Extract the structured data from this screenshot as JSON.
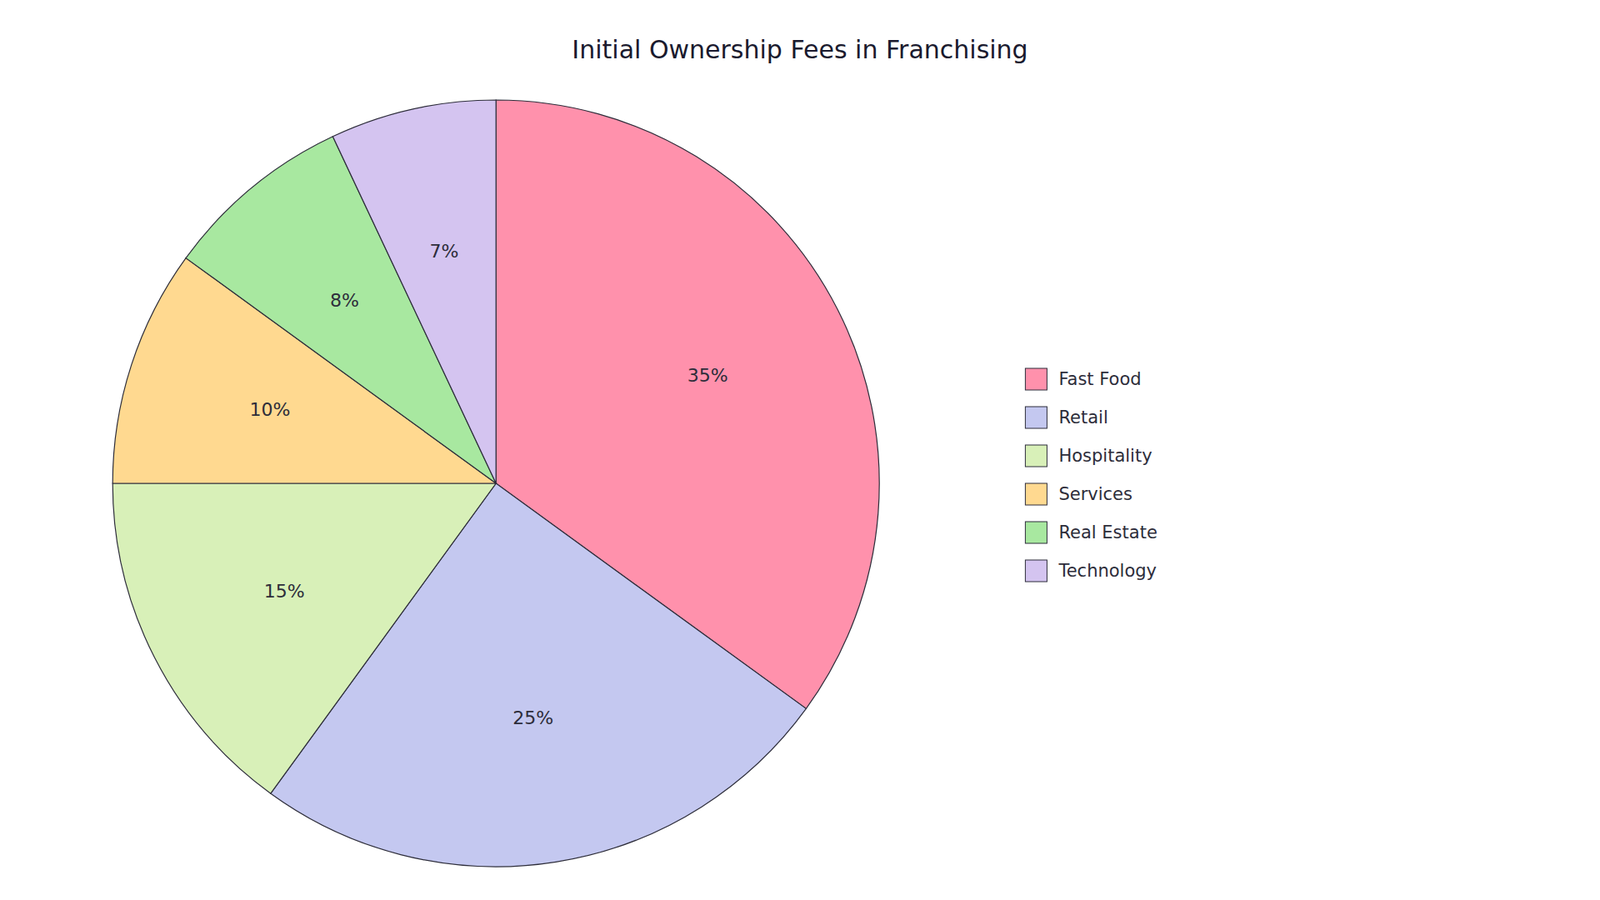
{
  "chart_data": {
    "type": "pie",
    "title": "Initial Ownership Fees in Franchising",
    "categories": [
      "Fast Food",
      "Retail",
      "Hospitality",
      "Services",
      "Real Estate",
      "Technology"
    ],
    "values": [
      35,
      25,
      15,
      10,
      8,
      7
    ],
    "value_labels": [
      "35%",
      "25%",
      "15%",
      "10%",
      "8%",
      "7%"
    ],
    "data_labels": true,
    "colors": [
      "#FF91AC",
      "#C4C8F0",
      "#D8F0B8",
      "#FFD990",
      "#A8E8A0",
      "#D4C4F0"
    ],
    "legend": "right"
  }
}
